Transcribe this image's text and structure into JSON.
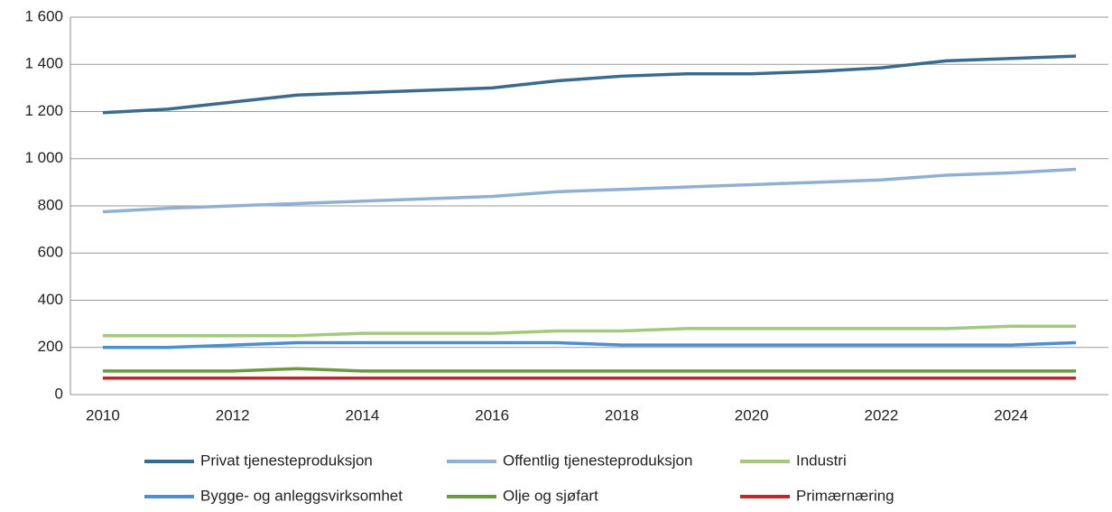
{
  "chart_data": {
    "type": "line",
    "x": [
      2010,
      2011,
      2012,
      2013,
      2014,
      2015,
      2016,
      2017,
      2018,
      2019,
      2020,
      2021,
      2022,
      2023,
      2024,
      2025
    ],
    "xlim": [
      2009.5,
      2025.5
    ],
    "xticks": [
      2010,
      2012,
      2014,
      2016,
      2018,
      2020,
      2022,
      2024
    ],
    "ylim": [
      0,
      1600
    ],
    "yticks": [
      0,
      200,
      400,
      600,
      800,
      {
        "value": 1000,
        "label": "1 000"
      },
      {
        "value": 1200,
        "label": "1 200"
      },
      {
        "value": 1400,
        "label": "1 400"
      },
      {
        "value": 1600,
        "label": "1 600"
      }
    ],
    "grid": true,
    "legend": "bottom",
    "series": [
      {
        "name": "Privat tjenesteproduksjon",
        "color": "#3b6a8f",
        "values": [
          1195,
          1210,
          1240,
          1270,
          1280,
          1290,
          1300,
          1330,
          1350,
          1360,
          1360,
          1370,
          1385,
          1415,
          1425,
          1435
        ]
      },
      {
        "name": "Offentlig tjenesteproduksjon",
        "color": "#8fb0d3",
        "values": [
          775,
          790,
          800,
          810,
          820,
          830,
          840,
          860,
          870,
          880,
          890,
          900,
          910,
          930,
          940,
          955
        ]
      },
      {
        "name": "Industri",
        "color": "#a2c97e",
        "values": [
          250,
          250,
          250,
          250,
          260,
          260,
          260,
          270,
          270,
          280,
          280,
          280,
          280,
          280,
          290,
          290
        ]
      },
      {
        "name": "Bygge- og anleggsvirksomhet",
        "color": "#4a8fd0",
        "values": [
          200,
          200,
          210,
          220,
          220,
          220,
          220,
          220,
          210,
          210,
          210,
          210,
          210,
          210,
          210,
          220
        ]
      },
      {
        "name": "Olje og sjøfart",
        "color": "#6a9a3c",
        "values": [
          100,
          100,
          100,
          110,
          100,
          100,
          100,
          100,
          100,
          100,
          100,
          100,
          100,
          100,
          100,
          100
        ]
      },
      {
        "name": "Primærnæring",
        "color": "#c0272d",
        "values": [
          70,
          70,
          70,
          70,
          70,
          70,
          70,
          70,
          70,
          70,
          70,
          70,
          70,
          70,
          70,
          70
        ]
      }
    ]
  }
}
